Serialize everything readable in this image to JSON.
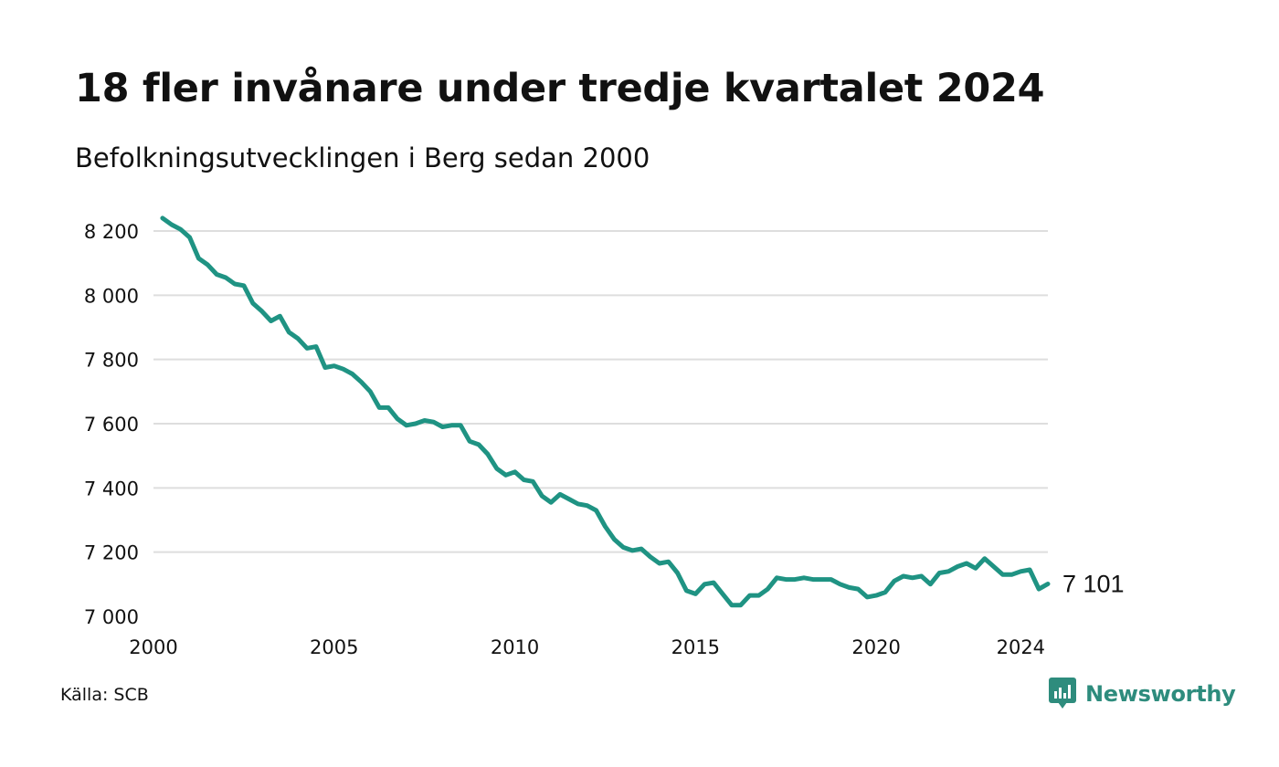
{
  "header": {
    "title": "18 fler invånare under tredje kvartalet 2024",
    "subtitle": "Befolkningsutvecklingen i Berg sedan 2000"
  },
  "footer": {
    "source": "Källa: SCB",
    "brand": "Newsworthy",
    "brand_icon": "bar-chart-speech-bubble-icon"
  },
  "colors": {
    "line": "#1f9383",
    "grid": "#dedede",
    "brand": "#2e8c7d"
  },
  "chart_data": {
    "type": "line",
    "title": "18 fler invånare under tredje kvartalet 2024",
    "subtitle": "Befolkningsutvecklingen i Berg sedan 2000",
    "xlabel": "",
    "ylabel": "",
    "xlim": [
      2000,
      2024.75
    ],
    "ylim": [
      7000,
      8250
    ],
    "x_ticks": [
      2000,
      2005,
      2010,
      2015,
      2020,
      2024
    ],
    "y_ticks": [
      7000,
      7200,
      7400,
      7600,
      7800,
      8000,
      8200
    ],
    "y_tick_labels": [
      "7 000",
      "7 200",
      "7 400",
      "7 600",
      "7 800",
      "8 000",
      "8 200"
    ],
    "grid": "horizontal",
    "end_label": "7 101",
    "series": [
      {
        "x": [
          2000.25,
          2000.5,
          2000.75,
          2001.0,
          2001.25,
          2001.5,
          2001.75,
          2002.0,
          2002.25,
          2002.5,
          2002.75,
          2003.0,
          2003.25,
          2003.5,
          2003.75,
          2004.0,
          2004.25,
          2004.5,
          2004.75,
          2005.0,
          2005.25,
          2005.5,
          2005.75,
          2006.0,
          2006.25,
          2006.5,
          2006.75,
          2007.0,
          2007.25,
          2007.5,
          2007.75,
          2008.0,
          2008.25,
          2008.5,
          2008.75,
          2009.0,
          2009.25,
          2009.5,
          2009.75,
          2010.0,
          2010.25,
          2010.5,
          2010.75,
          2011.0,
          2011.25,
          2011.5,
          2011.75,
          2012.0,
          2012.25,
          2012.5,
          2012.75,
          2013.0,
          2013.25,
          2013.5,
          2013.75,
          2014.0,
          2014.25,
          2014.5,
          2014.75,
          2015.0,
          2015.25,
          2015.5,
          2015.75,
          2016.0,
          2016.25,
          2016.5,
          2016.75,
          2017.0,
          2017.25,
          2017.5,
          2017.75,
          2018.0,
          2018.25,
          2018.5,
          2018.75,
          2019.0,
          2019.25,
          2019.5,
          2019.75,
          2020.0,
          2020.25,
          2020.5,
          2020.75,
          2021.0,
          2021.25,
          2021.5,
          2021.75,
          2022.0,
          2022.25,
          2022.5,
          2022.75,
          2023.0,
          2023.25,
          2023.5,
          2023.75,
          2024.0,
          2024.25,
          2024.5,
          2024.75
        ],
        "values": [
          8240,
          8220,
          8205,
          8180,
          8115,
          8095,
          8065,
          8055,
          8035,
          8030,
          7975,
          7950,
          7920,
          7935,
          7885,
          7865,
          7835,
          7840,
          7775,
          7780,
          7770,
          7755,
          7730,
          7700,
          7650,
          7650,
          7615,
          7595,
          7600,
          7610,
          7605,
          7590,
          7595,
          7595,
          7545,
          7535,
          7505,
          7460,
          7440,
          7450,
          7425,
          7420,
          7375,
          7355,
          7380,
          7365,
          7350,
          7345,
          7330,
          7280,
          7240,
          7215,
          7205,
          7210,
          7185,
          7165,
          7170,
          7135,
          7080,
          7070,
          7100,
          7105,
          7070,
          7035,
          7035,
          7065,
          7065,
          7085,
          7120,
          7115,
          7115,
          7120,
          7115,
          7115,
          7115,
          7100,
          7090,
          7085,
          7060,
          7065,
          7075,
          7110,
          7125,
          7120,
          7125,
          7100,
          7135,
          7140,
          7155,
          7165,
          7150,
          7180,
          7155,
          7130,
          7130,
          7140,
          7145,
          7085,
          7101
        ]
      }
    ]
  }
}
